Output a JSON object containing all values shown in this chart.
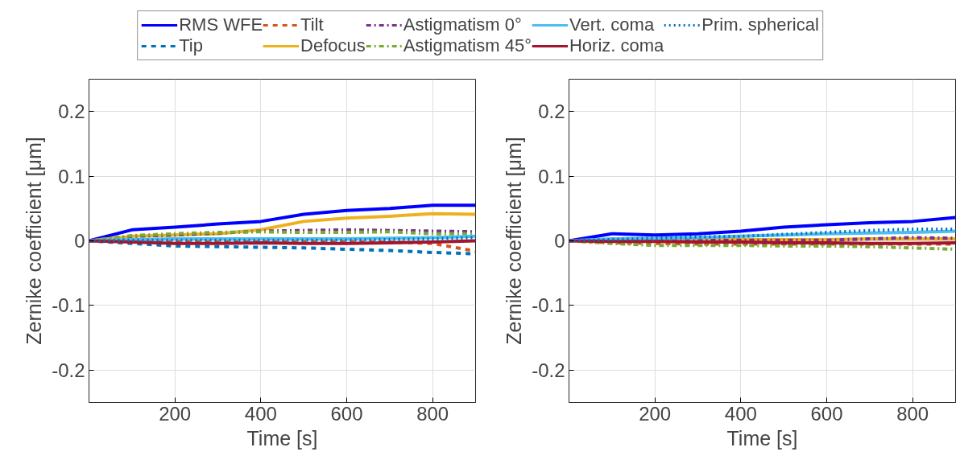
{
  "chart_data": [
    {
      "type": "line",
      "xlabel": "Time [s]",
      "ylabel": "Zernike coefficient [μm]",
      "xlim": [
        0,
        900
      ],
      "ylim": [
        -0.25,
        0.25
      ],
      "xticks": [
        200,
        400,
        600,
        800
      ],
      "yticks": [
        -0.2,
        -0.1,
        0,
        0.1,
        0.2
      ],
      "grid": true,
      "legend": "top",
      "x": [
        0,
        100,
        200,
        300,
        400,
        500,
        600,
        700,
        800,
        900
      ],
      "series": [
        {
          "name": "RMS WFE",
          "color": "#0000ff",
          "line_style": "solid",
          "values": [
            0,
            0.017,
            0.021,
            0.026,
            0.03,
            0.041,
            0.047,
            0.05,
            0.055,
            0.055
          ]
        },
        {
          "name": "Tip",
          "color": "#0072bd",
          "line_style": "dashed",
          "values": [
            0,
            -0.004,
            -0.008,
            -0.009,
            -0.01,
            -0.011,
            -0.013,
            -0.015,
            -0.018,
            -0.02
          ]
        },
        {
          "name": "Tilt",
          "color": "#d95319",
          "line_style": "dashed",
          "values": [
            0,
            -0.002,
            -0.002,
            -0.002,
            -0.002,
            -0.002,
            -0.002,
            -0.002,
            -0.004,
            -0.016
          ]
        },
        {
          "name": "Defocus",
          "color": "#edb120",
          "line_style": "solid",
          "values": [
            0,
            0.007,
            0.009,
            0.011,
            0.017,
            0.03,
            0.035,
            0.038,
            0.042,
            0.041
          ]
        },
        {
          "name": "Astigmatism 0°",
          "color": "#7e2f8e",
          "line_style": "dashdot",
          "values": [
            0,
            0.007,
            0.009,
            0.012,
            0.015,
            0.016,
            0.017,
            0.016,
            0.015,
            0.014
          ]
        },
        {
          "name": "Astigmatism 45°",
          "color": "#77ac30",
          "line_style": "dashdot",
          "values": [
            0,
            0.008,
            0.011,
            0.013,
            0.014,
            0.013,
            0.013,
            0.014,
            0.011,
            0.011
          ]
        },
        {
          "name": "Vert. coma",
          "color": "#4dbeee",
          "line_style": "solid",
          "values": [
            0,
            0.002,
            0.003,
            0.003,
            0.003,
            0.003,
            0.003,
            0.004,
            0.005,
            0.007
          ]
        },
        {
          "name": "Horiz. coma",
          "color": "#a2142f",
          "line_style": "solid",
          "values": [
            0,
            -0.002,
            -0.004,
            -0.004,
            -0.003,
            -0.004,
            -0.004,
            -0.003,
            -0.002,
            0
          ]
        },
        {
          "name": "Prim. spherical",
          "color": "#0072bd",
          "line_style": "dotted",
          "values": [
            0,
            0.001,
            0.001,
            0.001,
            0.001,
            0.001,
            0.001,
            0.002,
            0.003,
            0.005
          ]
        }
      ]
    },
    {
      "type": "line",
      "xlabel": "Time [s]",
      "ylabel": "Zernike coefficient [μm]",
      "xlim": [
        0,
        900
      ],
      "ylim": [
        -0.25,
        0.25
      ],
      "xticks": [
        200,
        400,
        600,
        800
      ],
      "yticks": [
        -0.2,
        -0.1,
        0,
        0.1,
        0.2
      ],
      "grid": true,
      "x": [
        0,
        100,
        200,
        300,
        400,
        500,
        600,
        700,
        800,
        900
      ],
      "series": [
        {
          "color": "#0000ff",
          "line_style": "solid",
          "values": [
            0,
            0.011,
            0.009,
            0.011,
            0.015,
            0.021,
            0.025,
            0.028,
            0.03,
            0.036
          ]
        },
        {
          "color": "#d95319",
          "line_style": "dashed",
          "values": [
            0,
            -0.003,
            -0.004,
            -0.005,
            -0.005,
            -0.005,
            -0.005,
            -0.005,
            -0.005,
            -0.005
          ]
        },
        {
          "color": "#edb120",
          "line_style": "solid",
          "x": [
            200,
            300,
            400,
            500,
            600,
            700,
            800,
            900
          ],
          "values": [
            0.002,
            0.002,
            0.002,
            0.002,
            0.002,
            0.003,
            0.003,
            0.003
          ]
        },
        {
          "color": "#7e2f8e",
          "line_style": "dashdot",
          "values": [
            0,
            0.001,
            0.001,
            0.001,
            0.001,
            0.001,
            0.001,
            0.003,
            0.005,
            0.004
          ]
        },
        {
          "color": "#77ac30",
          "line_style": "dashdot",
          "values": [
            0,
            -0.004,
            -0.007,
            -0.007,
            -0.007,
            -0.008,
            -0.008,
            -0.009,
            -0.011,
            -0.013
          ]
        },
        {
          "color": "#4dbeee",
          "line_style": "solid",
          "values": [
            0,
            0.003,
            0.004,
            0.005,
            0.007,
            0.009,
            0.011,
            0.012,
            0.013,
            0.015
          ]
        },
        {
          "color": "#a2142f",
          "line_style": "solid",
          "values": [
            0,
            -0.001,
            -0.001,
            -0.002,
            -0.002,
            -0.003,
            -0.003,
            -0.004,
            -0.004,
            -0.003
          ]
        },
        {
          "color": "#0072bd",
          "line_style": "dotted",
          "values": [
            0,
            0.002,
            0.004,
            0.006,
            0.007,
            0.01,
            0.013,
            0.016,
            0.018,
            0.018
          ]
        }
      ]
    }
  ]
}
